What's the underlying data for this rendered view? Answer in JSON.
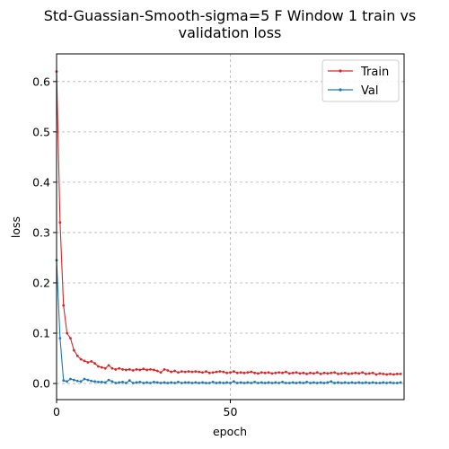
{
  "chart_data": {
    "type": "line",
    "title_lines": [
      "Std-Guassian-Smooth-sigma=5 F Window 1 train vs",
      "validation loss"
    ],
    "xlabel": "epoch",
    "ylabel": "loss",
    "xlim": [
      0,
      100
    ],
    "ylim": [
      -0.032,
      0.655
    ],
    "xticks": [
      0,
      50
    ],
    "xtick_labels": [
      "0",
      "50"
    ],
    "yticks": [
      0.0,
      0.1,
      0.2,
      0.3,
      0.4,
      0.5,
      0.6
    ],
    "ytick_labels": [
      "0.0",
      "0.1",
      "0.2",
      "0.3",
      "0.4",
      "0.5",
      "0.6"
    ],
    "grid": true,
    "legend_position": "top-right",
    "series": [
      {
        "name": "Train",
        "color": "#d62728",
        "values": [
          0.62,
          0.32,
          0.155,
          0.1,
          0.09,
          0.066,
          0.055,
          0.048,
          0.045,
          0.042,
          0.044,
          0.04,
          0.034,
          0.032,
          0.03,
          0.036,
          0.03,
          0.028,
          0.03,
          0.028,
          0.027,
          0.028,
          0.026,
          0.028,
          0.027,
          0.029,
          0.027,
          0.028,
          0.027,
          0.025,
          0.022,
          0.028,
          0.026,
          0.023,
          0.025,
          0.022,
          0.024,
          0.023,
          0.024,
          0.023,
          0.024,
          0.023,
          0.022,
          0.024,
          0.021,
          0.022,
          0.023,
          0.024,
          0.023,
          0.021,
          0.022,
          0.024,
          0.021,
          0.022,
          0.021,
          0.022,
          0.023,
          0.021,
          0.02,
          0.022,
          0.021,
          0.022,
          0.02,
          0.021,
          0.022,
          0.021,
          0.023,
          0.02,
          0.021,
          0.022,
          0.02,
          0.021,
          0.019,
          0.021,
          0.02,
          0.022,
          0.019,
          0.021,
          0.02,
          0.021,
          0.022,
          0.019,
          0.02,
          0.021,
          0.019,
          0.02,
          0.021,
          0.02,
          0.022,
          0.019,
          0.02,
          0.021,
          0.018,
          0.02,
          0.019,
          0.018,
          0.019,
          0.018,
          0.019,
          0.019
        ]
      },
      {
        "name": "Val",
        "color": "#1f77b4",
        "values": [
          0.245,
          0.09,
          0.006,
          0.004,
          0.009,
          0.007,
          0.005,
          0.004,
          0.009,
          0.007,
          0.005,
          0.004,
          0.003,
          0.003,
          0.002,
          0.007,
          0.004,
          0.001,
          0.002,
          0.003,
          0.001,
          0.006,
          0.001,
          0.002,
          0.003,
          0.001,
          0.002,
          0.001,
          0.003,
          0.002,
          0.001,
          0.002,
          0.001,
          0.002,
          0.001,
          0.003,
          0.001,
          0.002,
          0.002,
          0.001,
          0.002,
          0.001,
          0.002,
          0.001,
          0.001,
          0.003,
          0.001,
          0.002,
          0.001,
          0.002,
          0.001,
          0.004,
          0.001,
          0.002,
          0.001,
          0.002,
          0.001,
          0.003,
          0.001,
          0.002,
          0.001,
          0.002,
          0.001,
          0.002,
          0.001,
          0.003,
          0.001,
          0.001,
          0.002,
          0.001,
          0.002,
          0.001,
          0.003,
          0.001,
          0.002,
          0.001,
          0.002,
          0.001,
          0.002,
          0.004,
          0.001,
          0.002,
          0.001,
          0.002,
          0.001,
          0.002,
          0.001,
          0.002,
          0.001,
          0.002,
          0.001,
          0.002,
          0.001,
          0.001,
          0.002,
          0.001,
          0.002,
          0.001,
          0.001,
          0.002
        ]
      }
    ]
  }
}
